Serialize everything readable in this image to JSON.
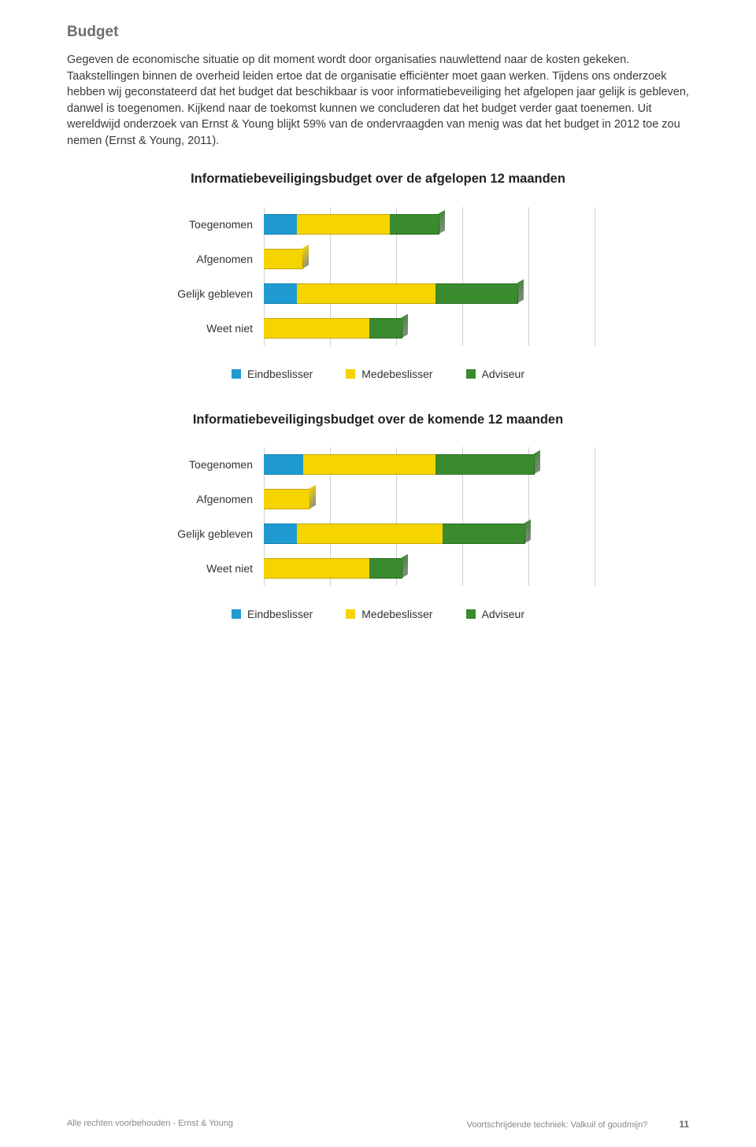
{
  "colors": {
    "heading": "#6e6e6e",
    "text": "#3a3a3a",
    "eindbeslisser": "#1f9bd1",
    "medebeslisser": "#f5d400",
    "adviseur": "#3a8a2e",
    "grid": "#d0d0d0"
  },
  "page": {
    "heading": "Budget",
    "body": "Gegeven de economische situatie op dit moment wordt door organisaties nauwlettend naar de kosten gekeken. Taakstellingen binnen de overheid leiden ertoe dat de organisatie efficiënter moet gaan werken. Tijdens ons onderzoek hebben wij geconstateerd dat het budget dat beschikbaar is voor informatiebeveiliging het afgelopen jaar gelijk is gebleven, danwel is toegenomen. Kijkend naar de toekomst kunnen we concluderen dat het budget verder gaat toenemen. Uit wereldwijd onderzoek van Ernst & Young blijkt 59% van de ondervraagden van menig was dat het budget in 2012 toe zou nemen (Ernst & Young, 2011)."
  },
  "legend": {
    "items": [
      {
        "label": "Eindbeslisser",
        "color": "#1f9bd1"
      },
      {
        "label": "Medebeslisser",
        "color": "#f5d400"
      },
      {
        "label": "Adviseur",
        "color": "#3a8a2e"
      }
    ]
  },
  "chart1": {
    "title": "Informatiebeveiligingsbudget over de afgelopen 12 maanden",
    "type": "stacked-bar-horizontal",
    "x_max": 100,
    "grid_step": 20,
    "categories": [
      "Toegenomen",
      "Afgenomen",
      "Gelijk gebleven",
      "Weet niet"
    ],
    "series": [
      {
        "name": "Eindbeslisser",
        "color": "#1f9bd1",
        "values": [
          10,
          0,
          10,
          0
        ]
      },
      {
        "name": "Medebeslisser",
        "color": "#f5d400",
        "values": [
          28,
          12,
          42,
          32
        ]
      },
      {
        "name": "Adviseur",
        "color": "#3a8a2e",
        "values": [
          15,
          0,
          25,
          10
        ]
      }
    ]
  },
  "chart2": {
    "title": "Informatiebeveiligingsbudget over de komende 12 maanden",
    "type": "stacked-bar-horizontal",
    "x_max": 100,
    "grid_step": 20,
    "categories": [
      "Toegenomen",
      "Afgenomen",
      "Gelijk gebleven",
      "Weet niet"
    ],
    "series": [
      {
        "name": "Eindbeslisser",
        "color": "#1f9bd1",
        "values": [
          12,
          0,
          10,
          0
        ]
      },
      {
        "name": "Medebeslisser",
        "color": "#f5d400",
        "values": [
          40,
          14,
          44,
          32
        ]
      },
      {
        "name": "Adviseur",
        "color": "#3a8a2e",
        "values": [
          30,
          0,
          25,
          10
        ]
      }
    ]
  },
  "footer": {
    "left": "Alle rechten voorbehouden - Ernst & Young",
    "center": "Voortschrijdende techniek: Valkuil of goudmijn?",
    "page": "11"
  }
}
